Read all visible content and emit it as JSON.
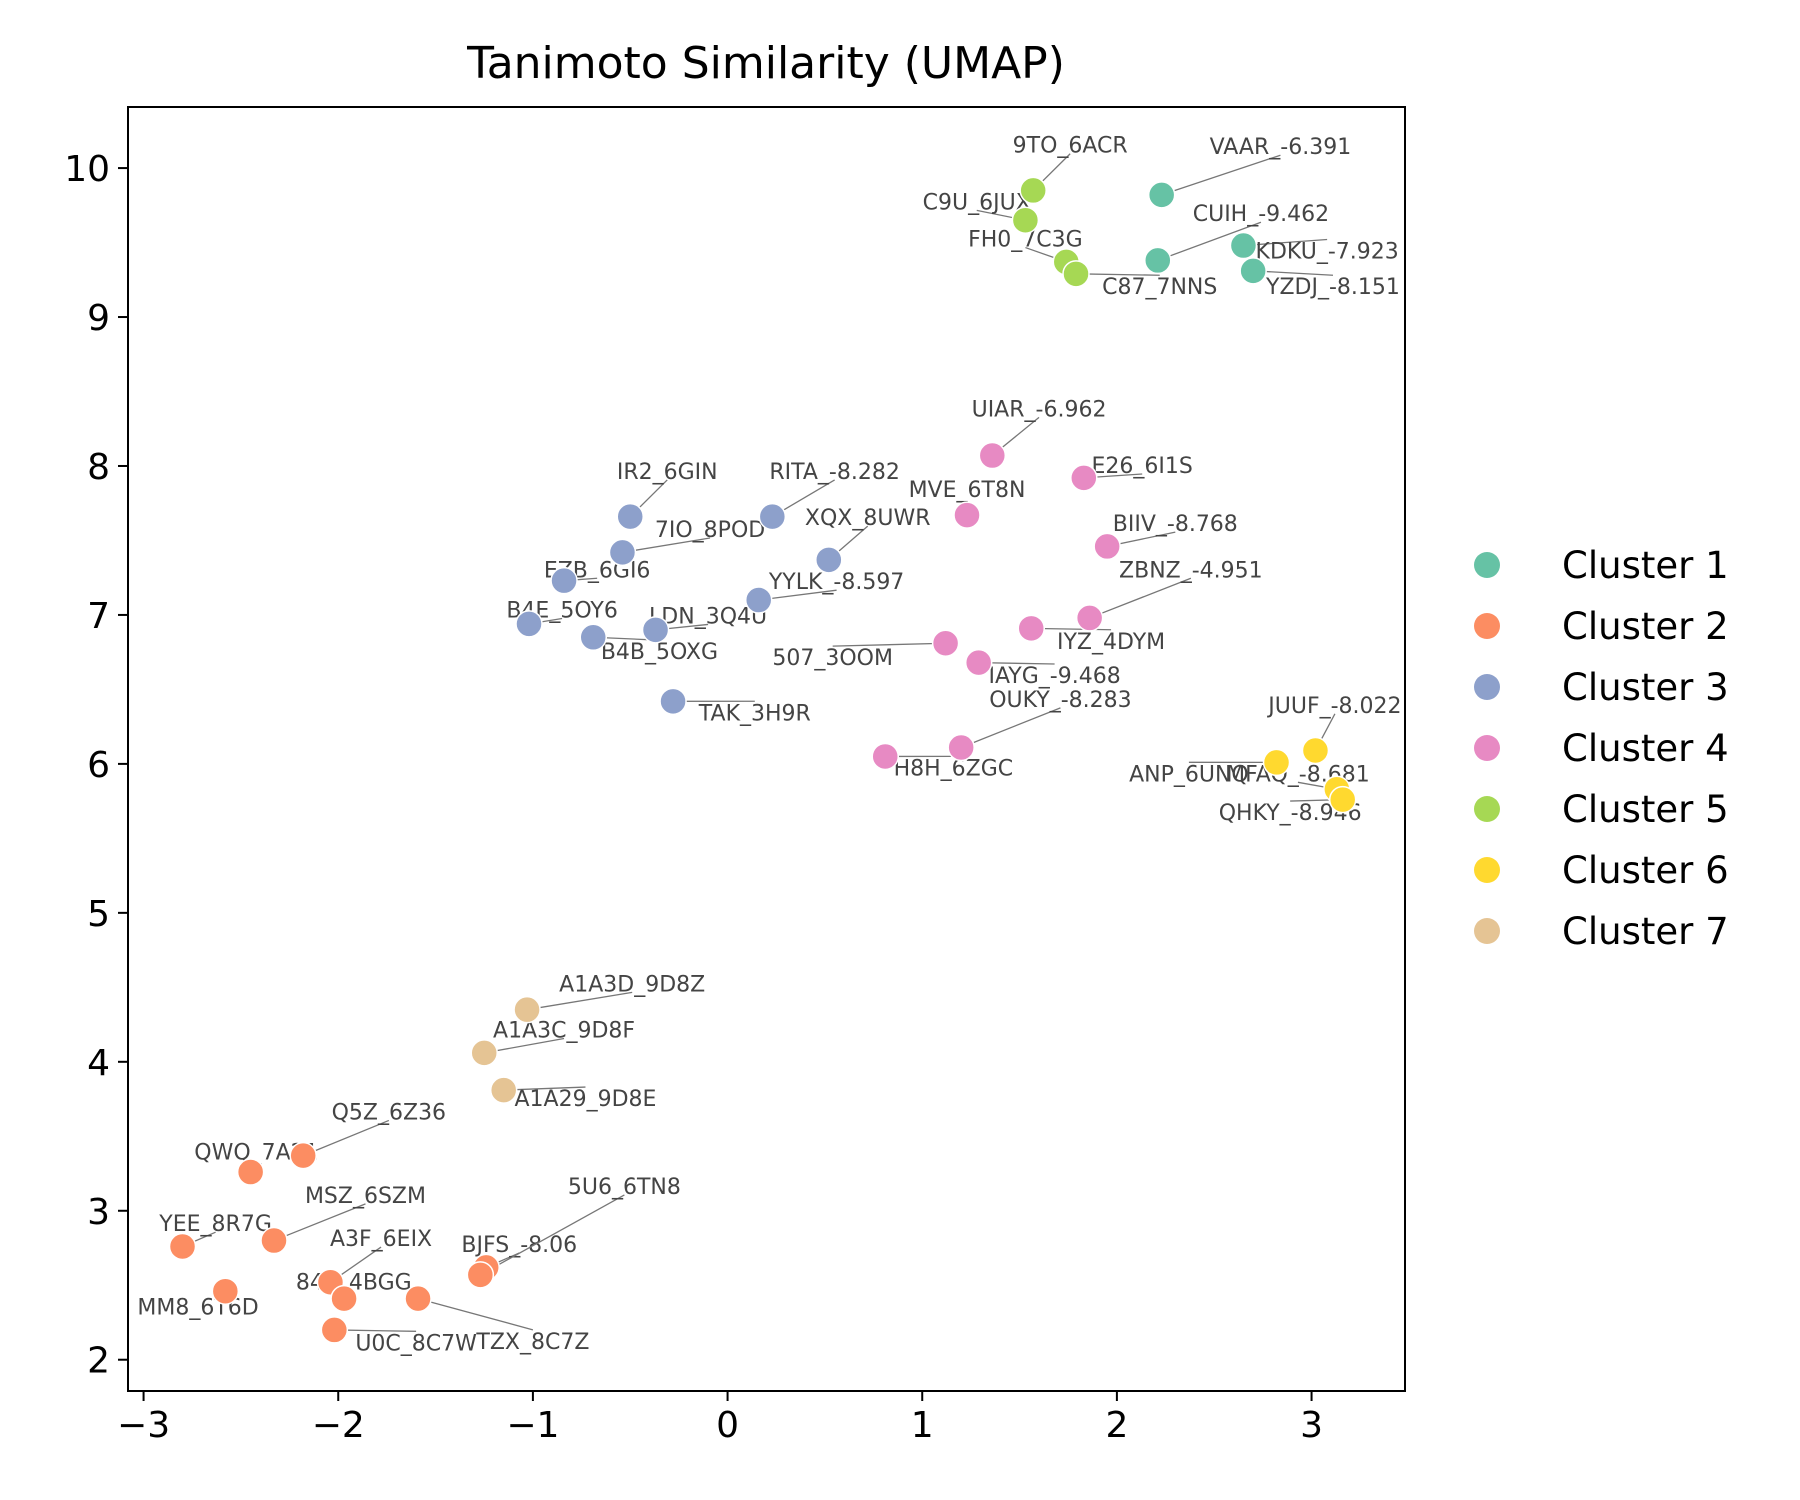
{
  "chart_data": {
    "type": "scatter",
    "title": "Tanimoto Similarity (UMAP)",
    "xlabel": "",
    "ylabel": "",
    "xlim": [
      -3.08,
      3.48
    ],
    "ylim": [
      1.79,
      10.41
    ],
    "xticks": [
      -3,
      -2,
      -1,
      0,
      1,
      2,
      3
    ],
    "xtick_labels": [
      "−3",
      "−2",
      "−1",
      "0",
      "1",
      "2",
      "3"
    ],
    "yticks": [
      2,
      3,
      4,
      5,
      6,
      7,
      8,
      9,
      10
    ],
    "ytick_labels": [
      "2",
      "3",
      "4",
      "5",
      "6",
      "7",
      "8",
      "9",
      "10"
    ],
    "grid": false,
    "legend_position": "right",
    "series": [
      {
        "name": "Cluster 1",
        "color": "#66c2a5",
        "points": [
          {
            "x": 2.23,
            "y": 9.82,
            "label": "VAAR_-6.391",
            "lx": 2.84,
            "ly": 10.14
          },
          {
            "x": 2.21,
            "y": 9.38,
            "label": "CUIH_-9.462",
            "lx": 2.74,
            "ly": 9.69
          },
          {
            "x": 2.65,
            "y": 9.48,
            "label": "KDKU_-7.923",
            "lx": 3.08,
            "ly": 9.44
          },
          {
            "x": 2.7,
            "y": 9.31,
            "label": "YZDJ_-8.151",
            "lx": 3.11,
            "ly": 9.2
          }
        ]
      },
      {
        "name": "Cluster 2",
        "color": "#fc8d62",
        "points": [
          {
            "x": -2.18,
            "y": 3.37,
            "label": "Q5Z_6Z36",
            "lx": -1.74,
            "ly": 3.66
          },
          {
            "x": -2.45,
            "y": 3.26,
            "label": "QWQ_7A21",
            "lx": -2.42,
            "ly": 3.39
          },
          {
            "x": -2.33,
            "y": 2.8,
            "label": "MSZ_6SZM",
            "lx": -1.86,
            "ly": 3.1
          },
          {
            "x": -2.8,
            "y": 2.76,
            "label": "YEE_8R7G",
            "lx": -2.63,
            "ly": 2.91
          },
          {
            "x": -2.58,
            "y": 2.46,
            "label": "MM8_6T6D",
            "lx": -2.72,
            "ly": 2.35
          },
          {
            "x": -2.04,
            "y": 2.52,
            "label": "A3F_6EIX",
            "lx": -1.78,
            "ly": 2.81
          },
          {
            "x": -1.97,
            "y": 2.41,
            "label": "844_4BGG",
            "lx": -1.92,
            "ly": 2.52
          },
          {
            "x": -2.02,
            "y": 2.2,
            "label": "U0C_8C7W",
            "lx": -1.6,
            "ly": 2.11
          },
          {
            "x": -1.59,
            "y": 2.41,
            "label": "TZX_8C7Z",
            "lx": -1.0,
            "ly": 2.12
          },
          {
            "x": -1.24,
            "y": 2.62,
            "label": "BJFS_-8.06",
            "lx": -1.07,
            "ly": 2.77
          },
          {
            "x": -1.27,
            "y": 2.57,
            "label": "5U6_6TN8",
            "lx": -0.53,
            "ly": 3.16
          }
        ]
      },
      {
        "name": "Cluster 3",
        "color": "#8da0cb",
        "points": [
          {
            "x": -0.5,
            "y": 7.66,
            "label": "IR2_6GIN",
            "lx": -0.31,
            "ly": 7.96
          },
          {
            "x": 0.23,
            "y": 7.66,
            "label": "RITA_-8.282",
            "lx": 0.55,
            "ly": 7.96
          },
          {
            "x": -0.54,
            "y": 7.42,
            "label": "7IO_8POD",
            "lx": -0.09,
            "ly": 7.57
          },
          {
            "x": 0.52,
            "y": 7.37,
            "label": "XQX_8UWR",
            "lx": 0.72,
            "ly": 7.65
          },
          {
            "x": -0.84,
            "y": 7.23,
            "label": "EZB_6GI6",
            "lx": -0.67,
            "ly": 7.3
          },
          {
            "x": 0.16,
            "y": 7.1,
            "label": "YYLK_-8.597",
            "lx": 0.56,
            "ly": 7.22
          },
          {
            "x": -1.02,
            "y": 6.94,
            "label": "B4E_5OY6",
            "lx": -0.85,
            "ly": 7.03
          },
          {
            "x": -0.37,
            "y": 6.9,
            "label": "LDN_3Q4U",
            "lx": -0.1,
            "ly": 6.99
          },
          {
            "x": -0.69,
            "y": 6.85,
            "label": "B4B_5OXG",
            "lx": -0.35,
            "ly": 6.75
          },
          {
            "x": -0.28,
            "y": 6.42,
            "label": "TAK_3H9R",
            "lx": 0.14,
            "ly": 6.34
          }
        ]
      },
      {
        "name": "Cluster 4",
        "color": "#e78ac3",
        "points": [
          {
            "x": 1.36,
            "y": 8.07,
            "label": "UIAR_-6.962",
            "lx": 1.6,
            "ly": 8.38
          },
          {
            "x": 1.83,
            "y": 7.92,
            "label": "E26_6I1S",
            "lx": 2.13,
            "ly": 8.0
          },
          {
            "x": 1.23,
            "y": 7.67,
            "label": "MVE_6T8N",
            "lx": 1.23,
            "ly": 7.84
          },
          {
            "x": 1.95,
            "y": 7.46,
            "label": "BIIV_-8.768",
            "lx": 2.3,
            "ly": 7.61
          },
          {
            "x": 1.86,
            "y": 6.98,
            "label": "ZBNZ_-4.951",
            "lx": 2.38,
            "ly": 7.3
          },
          {
            "x": 1.56,
            "y": 6.91,
            "label": "IYZ_4DYM",
            "lx": 1.97,
            "ly": 6.82
          },
          {
            "x": 1.12,
            "y": 6.81,
            "label": "507_3OOM",
            "lx": 0.54,
            "ly": 6.71
          },
          {
            "x": 1.29,
            "y": 6.68,
            "label": "IAYG_-9.468",
            "lx": 1.68,
            "ly": 6.59
          },
          {
            "x": 1.2,
            "y": 6.11,
            "label": "OUKY_-8.283",
            "lx": 1.71,
            "ly": 6.43
          },
          {
            "x": 0.81,
            "y": 6.05,
            "label": "H8H_6ZGC",
            "lx": 1.16,
            "ly": 5.97
          }
        ]
      },
      {
        "name": "Cluster 5",
        "color": "#a6d854",
        "points": [
          {
            "x": 1.57,
            "y": 9.85,
            "label": "9TO_6ACR",
            "lx": 1.76,
            "ly": 10.15
          },
          {
            "x": 1.53,
            "y": 9.65,
            "label": "C9U_6JUX",
            "lx": 1.28,
            "ly": 9.77
          },
          {
            "x": 1.74,
            "y": 9.37,
            "label": "FH0_7C3G",
            "lx": 1.53,
            "ly": 9.52
          },
          {
            "x": 1.79,
            "y": 9.29,
            "label": "C87_7NNS",
            "lx": 2.22,
            "ly": 9.2
          }
        ]
      },
      {
        "name": "Cluster 6",
        "color": "#ffd92f",
        "points": [
          {
            "x": 3.02,
            "y": 6.09,
            "label": "JUUF_-8.022",
            "lx": 3.12,
            "ly": 6.39
          },
          {
            "x": 2.82,
            "y": 6.01,
            "label": "ANP_6UNQ",
            "lx": 2.37,
            "ly": 5.93
          },
          {
            "x": 3.13,
            "y": 5.83,
            "label": "MFAQ_-8.681",
            "lx": 2.93,
            "ly": 5.93
          },
          {
            "x": 3.16,
            "y": 5.76,
            "label": "QHKY_-8.946",
            "lx": 2.89,
            "ly": 5.67
          }
        ]
      },
      {
        "name": "Cluster 7",
        "color": "#e5c494",
        "points": [
          {
            "x": -1.03,
            "y": 4.35,
            "label": "A1A3D_9D8Z",
            "lx": -0.49,
            "ly": 4.52
          },
          {
            "x": -1.25,
            "y": 4.06,
            "label": "A1A3C_9D8F",
            "lx": -0.84,
            "ly": 4.21
          },
          {
            "x": -1.15,
            "y": 3.81,
            "label": "A1A29_9D8E",
            "lx": -0.73,
            "ly": 3.75
          }
        ]
      }
    ]
  }
}
